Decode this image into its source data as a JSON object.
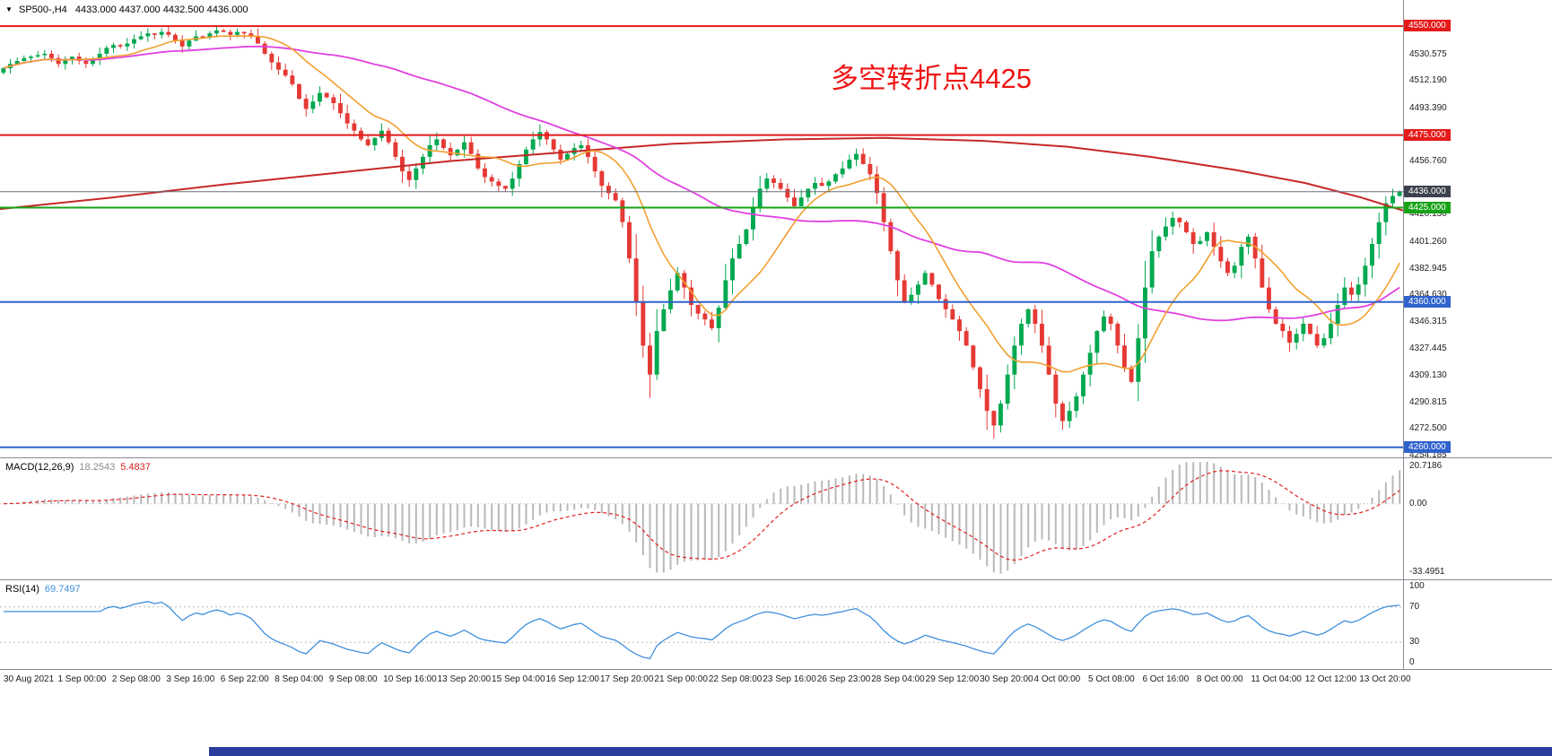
{
  "header": {
    "dropdown_icon": "▼",
    "symbol_timeframe": "SP500-,H4",
    "ohlc": "4433.000 4437.000 4432.500 4436.000"
  },
  "annotation": {
    "text": "多空转折点4425",
    "color": "#ef1414"
  },
  "chart_data": {
    "type": "candlestick",
    "symbol": "SP500-",
    "timeframe": "H4",
    "current_ohlc": {
      "open": "4433.000",
      "high": "4437.000",
      "low": "4432.500",
      "close": "4436.000"
    },
    "price_axis": {
      "min": 4253,
      "max": 4568,
      "ticks": [
        4530.575,
        4512.19,
        4493.39,
        4456.76,
        4420.13,
        4401.26,
        4382.945,
        4364.63,
        4346.315,
        4327.445,
        4309.13,
        4290.815,
        4272.5,
        4254.185
      ]
    },
    "levels": [
      {
        "value": 4550.0,
        "label": "4550.000",
        "color": "#e51a1a",
        "width": 2
      },
      {
        "value": 4475.0,
        "label": "4475.000",
        "color": "#e51a1a",
        "width": 2
      },
      {
        "value": 4436.0,
        "label": "4436.000",
        "color": "#6a6f7a",
        "width": 1,
        "badge": "#3c424d"
      },
      {
        "value": 4425.0,
        "label": "4425.000",
        "color": "#17a317",
        "width": 2
      },
      {
        "value": 4360.0,
        "label": "4360.000",
        "color": "#2f62cc",
        "width": 2
      },
      {
        "value": 4260.0,
        "label": "4260.000",
        "color": "#2f62cc",
        "width": 2
      }
    ],
    "closes": [
      4521,
      4524,
      4526,
      4528,
      4529,
      4530,
      4531,
      4528,
      4524,
      4527,
      4529,
      4526,
      4524,
      4527,
      4531,
      4535,
      4537,
      4536,
      4538,
      4541,
      4543,
      4545,
      4544,
      4546,
      4544,
      4540,
      4536,
      4540,
      4543,
      4542,
      4545,
      4547,
      4546,
      4544,
      4546,
      4545,
      4543,
      4538,
      4531,
      4525,
      4520,
      4516,
      4510,
      4500,
      4493,
      4498,
      4504,
      4501,
      4497,
      4490,
      4483,
      4478,
      4472,
      4468,
      4473,
      4478,
      4470,
      4460,
      4450,
      4444,
      4452,
      4460,
      4468,
      4472,
      4466,
      4461,
      4465,
      4470,
      4462,
      4452,
      4446,
      4443,
      4440,
      4438,
      4445,
      4455,
      4465,
      4472,
      4477,
      4472,
      4465,
      4458,
      4462,
      4466,
      4468,
      4460,
      4450,
      4440,
      4435,
      4430,
      4415,
      4390,
      4360,
      4330,
      4310,
      4340,
      4355,
      4368,
      4380,
      4370,
      4358,
      4352,
      4348,
      4342,
      4356,
      4375,
      4390,
      4400,
      4410,
      4425,
      4438,
      4445,
      4442,
      4438,
      4432,
      4426,
      4432,
      4438,
      4442,
      4440,
      4443,
      4448,
      4452,
      4458,
      4462,
      4455,
      4448,
      4435,
      4415,
      4395,
      4375,
      4360,
      4365,
      4372,
      4380,
      4372,
      4362,
      4355,
      4348,
      4340,
      4330,
      4315,
      4300,
      4285,
      4275,
      4290,
      4310,
      4330,
      4345,
      4355,
      4345,
      4330,
      4310,
      4290,
      4278,
      4285,
      4295,
      4310,
      4325,
      4340,
      4350,
      4345,
      4330,
      4315,
      4305,
      4335,
      4370,
      4395,
      4405,
      4412,
      4418,
      4415,
      4408,
      4400,
      4402,
      4408,
      4398,
      4388,
      4380,
      4385,
      4398,
      4405,
      4390,
      4370,
      4355,
      4345,
      4340,
      4332,
      4338,
      4345,
      4338,
      4330,
      4335,
      4345,
      4358,
      4370,
      4365,
      4372,
      4385,
      4400,
      4415,
      4428,
      4433,
      4436
    ],
    "wick_overrides": [
      {
        "i": 21,
        "high": 4548.5
      },
      {
        "i": 31,
        "high": 4549.5
      },
      {
        "i": 94,
        "low": 4294
      },
      {
        "i": 143,
        "low": 4272
      },
      {
        "i": 144,
        "low": 4266
      },
      {
        "i": 154,
        "low": 4272
      },
      {
        "i": 203,
        "high": 4437,
        "low": 4432.5
      }
    ],
    "ma_fast_period": 12,
    "ma_mid_period": 48,
    "ma_red": [
      [
        0.0,
        4424
      ],
      [
        0.08,
        4432
      ],
      [
        0.16,
        4441
      ],
      [
        0.24,
        4449
      ],
      [
        0.32,
        4457
      ],
      [
        0.4,
        4463
      ],
      [
        0.48,
        4469
      ],
      [
        0.56,
        4472
      ],
      [
        0.63,
        4473
      ],
      [
        0.7,
        4471
      ],
      [
        0.76,
        4467
      ],
      [
        0.82,
        4460
      ],
      [
        0.88,
        4451
      ],
      [
        0.93,
        4442
      ],
      [
        0.97,
        4432
      ],
      [
        1.0,
        4423
      ]
    ],
    "indicators": {
      "macd": {
        "label": "MACD(12,26,9)",
        "value_main": "18.2543",
        "value_signal": "5.4837",
        "axis": [
          "20.7186",
          "0.00",
          "-33.4951"
        ]
      },
      "rsi": {
        "label": "RSI(14)",
        "value": "69.7497",
        "axis": [
          "100",
          "70",
          "30",
          "0"
        ],
        "levels": [
          70,
          30
        ]
      }
    },
    "time_axis": [
      "30 Aug 2021",
      "1 Sep 00:00",
      "2 Sep 08:00",
      "3 Sep 16:00",
      "6 Sep 22:00",
      "8 Sep 04:00",
      "9 Sep 08:00",
      "10 Sep 16:00",
      "13 Sep 20:00",
      "15 Sep 04:00",
      "16 Sep 12:00",
      "17 Sep 20:00",
      "21 Sep 00:00",
      "22 Sep 08:00",
      "23 Sep 16:00",
      "26 Sep 23:00",
      "28 Sep 04:00",
      "29 Sep 12:00",
      "30 Sep 20:00",
      "4 Oct 00:00",
      "5 Oct 08:00",
      "6 Oct 16:00",
      "8 Oct 00:00",
      "11 Oct 04:00",
      "12 Oct 12:00",
      "13 Oct 20:00"
    ],
    "colors": {
      "up": "#00a84f",
      "down": "#e53935",
      "ma_fast": "#f0a030",
      "ma_mid": "#e040e0",
      "ma_slow": "#c62828",
      "macd_hist": "#b8b8b8",
      "macd_signal": "#e02020",
      "rsi": "#3f8fdd",
      "level_red": "#e51a1a",
      "level_green": "#17a317",
      "level_blue": "#2f62cc",
      "taskbar_blue": "#2b3c9e"
    }
  }
}
